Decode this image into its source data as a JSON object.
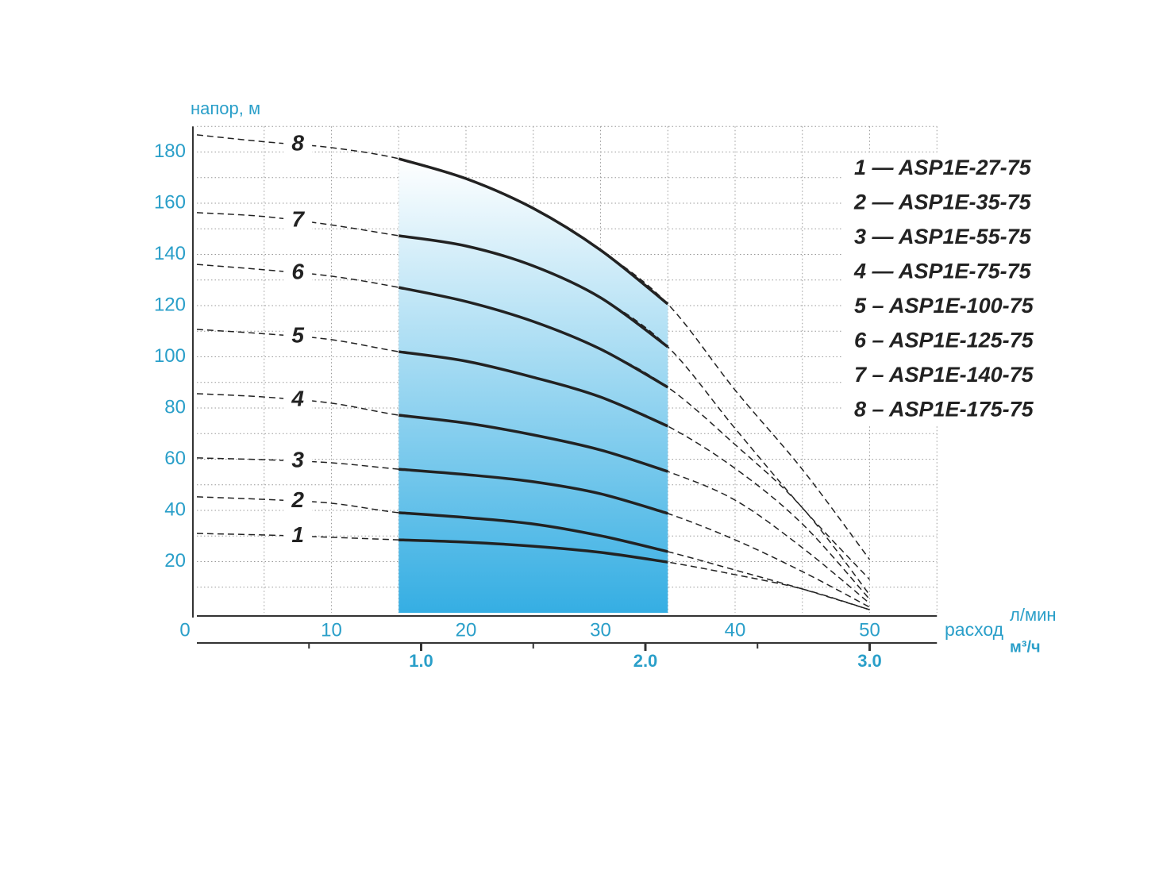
{
  "chart_data": {
    "type": "line",
    "y_label": "напор, м",
    "x_label": "расход",
    "x_unit": "л/мин",
    "x2_unit": "м³/ч",
    "x": [
      0,
      5,
      10,
      15,
      20,
      25,
      30,
      35,
      40,
      45,
      50
    ],
    "working_range": [
      15,
      35
    ],
    "series": [
      {
        "name": "1 — ASP1E-27-75",
        "curve_label": "1",
        "color": "#222222",
        "values": [
          31,
          30.4,
          29.5,
          28.5,
          27.6,
          26,
          23.6,
          19.8,
          14.9,
          9.3,
          1.2
        ]
      },
      {
        "name": "2 — ASP1E-35-75",
        "curve_label": "2",
        "color": "#222222",
        "values": [
          45.3,
          44.3,
          42.8,
          39.1,
          37.2,
          34.7,
          30.1,
          23.9,
          16.7,
          9.3,
          1.2
        ]
      },
      {
        "name": "3 — ASP1E-55-75",
        "curve_label": "3",
        "color": "#222222",
        "values": [
          60.5,
          59.8,
          58.6,
          56.1,
          54,
          51.2,
          46.5,
          38.8,
          28.5,
          16.1,
          2.2
        ]
      },
      {
        "name": "4 — ASP1E-75-75",
        "curve_label": "4",
        "color": "#222222",
        "values": [
          85.6,
          84.3,
          81.9,
          77.2,
          74.1,
          69.5,
          63.6,
          55.2,
          44,
          25.4,
          3.7
        ]
      },
      {
        "name": "5 – ASP1E-100-75",
        "curve_label": "5",
        "color": "#222222",
        "values": [
          110.7,
          109,
          106.7,
          102,
          98.3,
          92,
          84.3,
          72.9,
          56.4,
          34.7,
          5.3
        ]
      },
      {
        "name": "6 – ASP1E-125-75",
        "curve_label": "6",
        "color": "#222222",
        "values": [
          136.1,
          134,
          131.5,
          127.1,
          121.6,
          113.8,
          103,
          88.1,
          65.7,
          41,
          7
        ]
      },
      {
        "name": "7 – ASP1E-140-75",
        "curve_label": "7",
        "color": "#222222",
        "values": [
          156.3,
          154.8,
          151.5,
          147.3,
          143.3,
          135.5,
          123.1,
          103.9,
          72,
          41,
          13
        ]
      },
      {
        "name": "8 – ASP1E-175-75",
        "curve_label": "8",
        "color": "#222222",
        "values": [
          186.7,
          184,
          181.7,
          177.4,
          169.6,
          158,
          141.7,
          120.6,
          87,
          56,
          20.8
        ]
      }
    ],
    "xlim": [
      0,
      55
    ],
    "ylim": [
      0,
      190
    ],
    "xticks": [
      0,
      10,
      20,
      30,
      40,
      50
    ],
    "yticks": [
      20,
      40,
      60,
      80,
      100,
      120,
      140,
      160,
      180
    ],
    "xgrid": [
      5,
      10,
      15,
      20,
      25,
      30,
      35,
      40,
      45,
      50,
      55
    ],
    "ygrid": [
      10,
      20,
      30,
      40,
      50,
      60,
      70,
      80,
      90,
      100,
      110,
      120,
      130,
      140,
      150,
      160,
      170,
      180,
      190
    ],
    "x2lim": [
      0,
      3.3
    ],
    "x2ticks": [
      {
        "value": 1,
        "label": "1.0"
      },
      {
        "value": 2,
        "label": "2.0"
      },
      {
        "value": 3,
        "label": "3.0"
      }
    ],
    "x2minor": [
      0.5,
      1.5,
      2.5
    ],
    "tick_color": "#2a9fc9",
    "band_color": "#35aee3"
  }
}
